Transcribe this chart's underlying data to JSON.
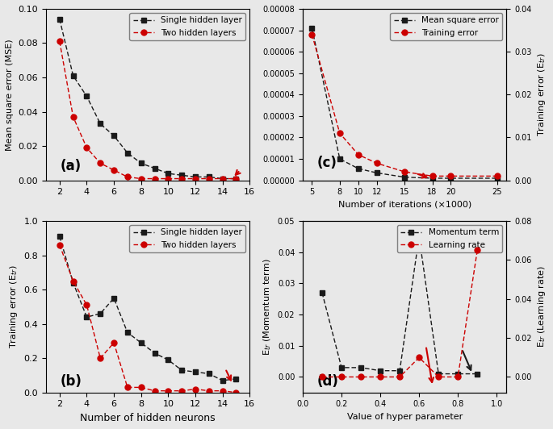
{
  "panel_a": {
    "x": [
      2,
      3,
      4,
      5,
      6,
      7,
      8,
      9,
      10,
      11,
      12,
      13,
      14,
      15
    ],
    "single": [
      0.094,
      0.061,
      0.049,
      0.033,
      0.026,
      0.016,
      0.01,
      0.007,
      0.004,
      0.003,
      0.002,
      0.002,
      0.001,
      0.001
    ],
    "two": [
      0.081,
      0.037,
      0.019,
      0.01,
      0.006,
      0.002,
      0.001,
      0.001,
      0.001,
      0.001,
      0.001,
      0.001,
      0.001,
      0.001
    ],
    "ylabel": "Mean square error (MSE)",
    "xlim": [
      1,
      16
    ],
    "ylim": [
      0,
      0.1
    ],
    "yticks": [
      0,
      0.02,
      0.04,
      0.06,
      0.08,
      0.1
    ],
    "xticks": [
      2,
      4,
      6,
      8,
      10,
      12,
      14,
      16
    ],
    "label": "(a)"
  },
  "panel_b": {
    "x": [
      2,
      3,
      4,
      5,
      6,
      7,
      8,
      9,
      10,
      11,
      12,
      13,
      14,
      15
    ],
    "single": [
      0.91,
      0.64,
      0.44,
      0.46,
      0.55,
      0.35,
      0.29,
      0.23,
      0.19,
      0.13,
      0.12,
      0.11,
      0.07,
      0.08
    ],
    "two": [
      0.86,
      0.65,
      0.51,
      0.2,
      0.29,
      0.03,
      0.03,
      0.01,
      0.01,
      0.01,
      0.02,
      0.01,
      0.01,
      0.0
    ],
    "xlabel": "Number of hidden neurons",
    "ylabel": "Training error (E$_{tr}$)",
    "xlim": [
      1,
      16
    ],
    "ylim": [
      0,
      1.0
    ],
    "yticks": [
      0,
      0.2,
      0.4,
      0.6,
      0.8,
      1.0
    ],
    "xticks": [
      2,
      4,
      6,
      8,
      10,
      12,
      14,
      16
    ],
    "label": "(b)"
  },
  "panel_c": {
    "x": [
      5,
      8,
      10,
      12,
      15,
      18,
      20,
      25
    ],
    "mse": [
      7.1e-05,
      1e-05,
      5.5e-06,
      3.5e-06,
      1.5e-06,
      1e-06,
      1e-06,
      1e-06
    ],
    "training": [
      0.034,
      0.011,
      0.006,
      0.004,
      0.002,
      0.001,
      0.001,
      0.001
    ],
    "xlabel": "Number of iterations (×1000)",
    "ylabel_right": "Training error (E$_{tr}$)",
    "xlim": [
      4,
      26
    ],
    "ylim_left": [
      0,
      8e-05
    ],
    "ylim_right": [
      0,
      0.04
    ],
    "yticks_left": [
      0.0,
      1e-05,
      2e-05,
      3e-05,
      4e-05,
      5e-05,
      6e-05,
      7e-05,
      8e-05
    ],
    "yticks_right": [
      0.0,
      0.01,
      0.02,
      0.03,
      0.04
    ],
    "xticks": [
      5,
      8,
      10,
      12,
      15,
      18,
      20,
      25
    ],
    "label": "(c)"
  },
  "panel_d": {
    "x": [
      0.1,
      0.2,
      0.3,
      0.4,
      0.5,
      0.6,
      0.7,
      0.8,
      0.9
    ],
    "momentum": [
      0.027,
      0.003,
      0.003,
      0.002,
      0.002,
      0.045,
      0.001,
      0.001,
      0.001
    ],
    "learning": [
      0.0,
      0.0,
      0.0,
      0.0,
      0.0,
      0.01,
      0.0,
      0.0,
      0.065
    ],
    "xlabel": "Value of hyper parameter",
    "ylabel_left": "E$_{tr}$ (Momentum term)",
    "ylabel_right": "E$_{tr}$ (Learning rate)",
    "xlim": [
      0.0,
      1.05
    ],
    "ylim_left": [
      -0.005,
      0.05
    ],
    "ylim_right": [
      -0.008,
      0.08
    ],
    "yticks_left": [
      0.0,
      0.01,
      0.02,
      0.03,
      0.04,
      0.05
    ],
    "yticks_right": [
      0.0,
      0.02,
      0.04,
      0.06,
      0.08
    ],
    "xticks": [
      0.0,
      0.2,
      0.4,
      0.6,
      0.8,
      1.0
    ],
    "label": "(d)"
  },
  "colors": {
    "black": "#1a1a1a",
    "red": "#cc0000"
  }
}
